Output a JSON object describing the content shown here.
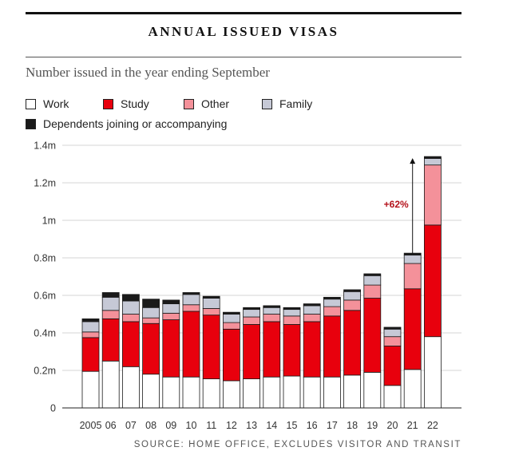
{
  "chart_data": {
    "type": "bar",
    "stacked": true,
    "title": "ANNUAL ISSUED VISAS",
    "subtitle": "Number issued in the year ending September",
    "source": "SOURCE: HOME OFFICE, EXCLUDES VISITOR AND TRANSIT",
    "categories": [
      "2005",
      "06",
      "07",
      "08",
      "09",
      "10",
      "11",
      "12",
      "13",
      "14",
      "15",
      "16",
      "17",
      "18",
      "19",
      "20",
      "21",
      "22"
    ],
    "series": [
      {
        "name": "Work",
        "color": "#ffffff",
        "values": [
          195000,
          250000,
          220000,
          180000,
          165000,
          165000,
          155000,
          145000,
          155000,
          165000,
          170000,
          165000,
          165000,
          175000,
          190000,
          120000,
          205000,
          380000
        ]
      },
      {
        "name": "Study",
        "color": "#e8000d",
        "values": [
          180000,
          225000,
          240000,
          270000,
          305000,
          350000,
          340000,
          275000,
          290000,
          295000,
          275000,
          295000,
          325000,
          345000,
          395000,
          210000,
          430000,
          595000
        ]
      },
      {
        "name": "Other",
        "color": "#f4919a",
        "values": [
          30000,
          45000,
          40000,
          30000,
          35000,
          35000,
          35000,
          35000,
          40000,
          40000,
          45000,
          40000,
          50000,
          55000,
          70000,
          50000,
          135000,
          320000
        ]
      },
      {
        "name": "Family",
        "color": "#c6c9d6",
        "values": [
          55000,
          70000,
          70000,
          55000,
          50000,
          55000,
          55000,
          45000,
          40000,
          35000,
          35000,
          45000,
          40000,
          45000,
          50000,
          40000,
          45000,
          35000
        ]
      },
      {
        "name": "Dependents joining or accompanying",
        "color": "#1a1a1a",
        "values": [
          15000,
          25000,
          35000,
          45000,
          20000,
          10000,
          10000,
          10000,
          10000,
          10000,
          10000,
          10000,
          10000,
          10000,
          10000,
          10000,
          10000,
          10000
        ]
      }
    ],
    "yticks": [
      0,
      200000,
      400000,
      600000,
      800000,
      1000000,
      1200000,
      1400000
    ],
    "ytick_labels": [
      "0",
      "0.2m",
      "0.4m",
      "0.6m",
      "0.8m",
      "1m",
      "1.2m",
      "1.4m"
    ],
    "ylim": [
      0,
      1400000
    ],
    "grid": true,
    "annotation": {
      "text": "+62%",
      "category": "21",
      "from_value": 825000,
      "to_value": 1340000
    }
  },
  "colors": {
    "study": "#e8000d",
    "other": "#f4919a",
    "family": "#c6c9d6",
    "dependents": "#1a1a1a",
    "annotation": "#b5121b"
  }
}
